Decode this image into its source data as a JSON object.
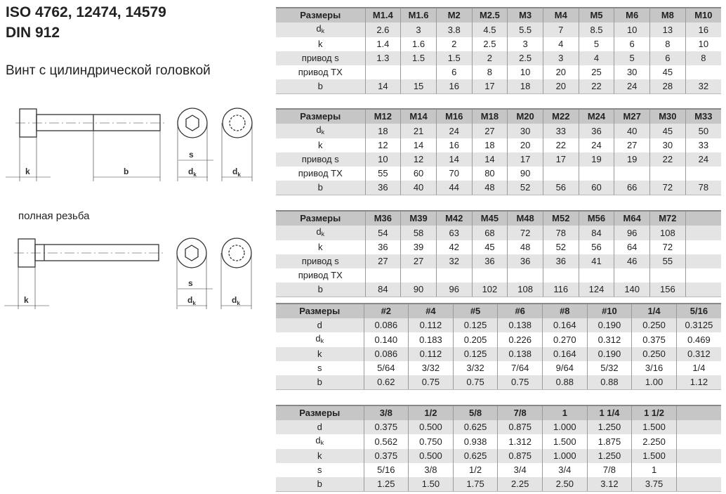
{
  "header": {
    "title_line1": "ISO 4762, 12474, 14579",
    "title_line2": "DIN 912",
    "subtitle": "Винт с цилиндрической головкой",
    "caption_full_thread": "полная резьба"
  },
  "drawing_labels": {
    "k": "k",
    "b": "b",
    "s": "s",
    "dk": "d",
    "dk_sub": "k"
  },
  "tables": [
    {
      "header": [
        "Размеры",
        "M1.4",
        "M1.6",
        "M2",
        "M2.5",
        "M3",
        "M4",
        "M5",
        "M6",
        "M8",
        "M10"
      ],
      "rows": [
        {
          "label": "d",
          "sub": "k",
          "values": [
            "2.6",
            "3",
            "3.8",
            "4.5",
            "5.5",
            "7",
            "8.5",
            "10",
            "13",
            "16"
          ]
        },
        {
          "label": "k",
          "values": [
            "1.4",
            "1.6",
            "2",
            "2.5",
            "3",
            "4",
            "5",
            "6",
            "8",
            "10"
          ]
        },
        {
          "label": "привод s",
          "values": [
            "1.3",
            "1.5",
            "1.5",
            "2",
            "2.5",
            "3",
            "4",
            "5",
            "6",
            "8"
          ]
        },
        {
          "label": "привод TX",
          "values": [
            "",
            "",
            "6",
            "8",
            "10",
            "20",
            "25",
            "30",
            "45",
            ""
          ]
        },
        {
          "label": "b",
          "values": [
            "14",
            "15",
            "16",
            "17",
            "18",
            "20",
            "22",
            "24",
            "28",
            "32"
          ]
        }
      ]
    },
    {
      "header": [
        "Размеры",
        "M12",
        "M14",
        "M16",
        "M18",
        "M20",
        "M22",
        "M24",
        "M27",
        "M30",
        "M33"
      ],
      "rows": [
        {
          "label": "d",
          "sub": "k",
          "values": [
            "18",
            "21",
            "24",
            "27",
            "30",
            "33",
            "36",
            "40",
            "45",
            "50"
          ]
        },
        {
          "label": "k",
          "values": [
            "12",
            "14",
            "16",
            "18",
            "20",
            "22",
            "24",
            "27",
            "30",
            "33"
          ]
        },
        {
          "label": "привод s",
          "values": [
            "10",
            "12",
            "14",
            "14",
            "17",
            "17",
            "19",
            "19",
            "22",
            "24"
          ]
        },
        {
          "label": "привод TX",
          "values": [
            "55",
            "60",
            "70",
            "80",
            "90",
            "",
            "",
            "",
            "",
            ""
          ]
        },
        {
          "label": "b",
          "values": [
            "36",
            "40",
            "44",
            "48",
            "52",
            "56",
            "60",
            "66",
            "72",
            "78"
          ]
        }
      ]
    },
    {
      "header": [
        "Размеры",
        "M36",
        "M39",
        "M42",
        "M45",
        "M48",
        "M52",
        "M56",
        "M64",
        "M72",
        ""
      ],
      "rows": [
        {
          "label": "d",
          "sub": "k",
          "values": [
            "54",
            "58",
            "63",
            "68",
            "72",
            "78",
            "84",
            "96",
            "108",
            ""
          ]
        },
        {
          "label": "k",
          "values": [
            "36",
            "39",
            "42",
            "45",
            "48",
            "52",
            "56",
            "64",
            "72",
            ""
          ]
        },
        {
          "label": "привод s",
          "values": [
            "27",
            "27",
            "32",
            "36",
            "36",
            "36",
            "41",
            "46",
            "55",
            ""
          ]
        },
        {
          "label": "привод TX",
          "values": [
            "",
            "",
            "",
            "",
            "",
            "",
            "",
            "",
            "",
            ""
          ]
        },
        {
          "label": "b",
          "values": [
            "84",
            "90",
            "96",
            "102",
            "108",
            "116",
            "124",
            "140",
            "156",
            ""
          ]
        }
      ]
    },
    {
      "header": [
        "Размеры",
        "#2",
        "#4",
        "#5",
        "#6",
        "#8",
        "#10",
        "1/4",
        "5/16"
      ],
      "rows": [
        {
          "label": "d",
          "values": [
            "0.086",
            "0.112",
            "0.125",
            "0.138",
            "0.164",
            "0.190",
            "0.250",
            "0.3125"
          ]
        },
        {
          "label": "d",
          "sub": "k",
          "values": [
            "0.140",
            "0.183",
            "0.205",
            "0.226",
            "0.270",
            "0.312",
            "0.375",
            "0.469"
          ]
        },
        {
          "label": "k",
          "values": [
            "0.086",
            "0.112",
            "0.125",
            "0.138",
            "0.164",
            "0.190",
            "0.250",
            "0.312"
          ]
        },
        {
          "label": "s",
          "values": [
            "5/64",
            "3/32",
            "3/32",
            "7/64",
            "9/64",
            "5/32",
            "3/16",
            "1/4"
          ]
        },
        {
          "label": "b",
          "values": [
            "0.62",
            "0.75",
            "0.75",
            "0.75",
            "0.88",
            "0.88",
            "1.00",
            "1.12"
          ]
        }
      ]
    },
    {
      "header": [
        "Размеры",
        "3/8",
        "1/2",
        "5/8",
        "7/8",
        "1",
        "1 1/4",
        "1 1/2",
        ""
      ],
      "rows": [
        {
          "label": "d",
          "values": [
            "0.375",
            "0.500",
            "0.625",
            "0.875",
            "1.000",
            "1.250",
            "1.500",
            ""
          ]
        },
        {
          "label": "d",
          "sub": "k",
          "values": [
            "0.562",
            "0.750",
            "0.938",
            "1.312",
            "1.500",
            "1.875",
            "2.250",
            ""
          ]
        },
        {
          "label": "k",
          "values": [
            "0.375",
            "0.500",
            "0.625",
            "0.875",
            "1.000",
            "1.250",
            "1.500",
            ""
          ]
        },
        {
          "label": "s",
          "values": [
            "5/16",
            "3/8",
            "1/2",
            "3/4",
            "3/4",
            "7/8",
            "1",
            ""
          ]
        },
        {
          "label": "b",
          "values": [
            "1.25",
            "1.50",
            "1.75",
            "2.25",
            "2.50",
            "3.12",
            "3.75",
            ""
          ]
        }
      ]
    }
  ]
}
